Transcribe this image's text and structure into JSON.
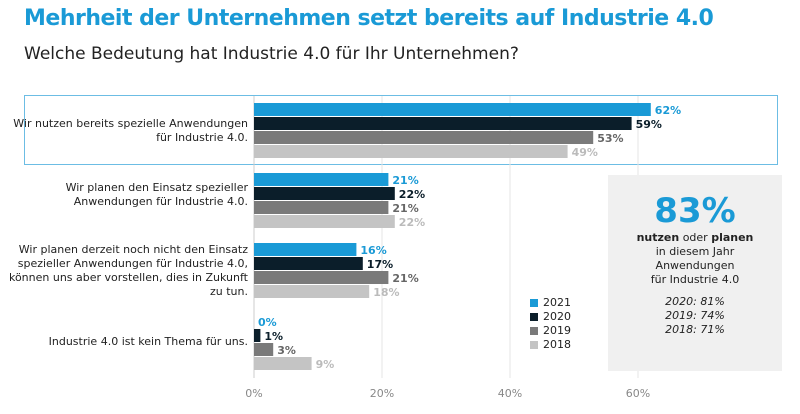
{
  "title": "Mehrheit der Unternehmen setzt bereits auf Industrie 4.0",
  "subtitle": "Welche Bedeutung hat Industrie 4.0 für Ihr Unternehmen?",
  "chart_data": {
    "type": "bar",
    "orientation": "horizontal",
    "categories": [
      "Wir nutzen bereits spezielle Anwendungen für Industrie 4.0.",
      "Wir planen den Einsatz spezieller Anwendungen für Industrie 4.0.",
      "Wir planen derzeit noch nicht den Einsatz spezieller Anwendungen für Industrie 4.0, können uns aber vorstellen, dies in Zukunft zu tun.",
      "Industrie 4.0 ist kein Thema für uns."
    ],
    "series": [
      {
        "name": "2021",
        "color": "#1a9ad6",
        "values": [
          62,
          21,
          16,
          0
        ]
      },
      {
        "name": "2020",
        "color": "#0b1e2a",
        "values": [
          59,
          22,
          17,
          1
        ]
      },
      {
        "name": "2019",
        "color": "#7a7a7a",
        "values": [
          53,
          21,
          21,
          3
        ]
      },
      {
        "name": "2018",
        "color": "#c4c4c4",
        "values": [
          49,
          22,
          18,
          9
        ]
      }
    ],
    "xticks": [
      "0%",
      "20%",
      "40%",
      "60%"
    ],
    "xlim": [
      0,
      70
    ],
    "grid": true,
    "legend": "bottom-right",
    "highlighted_category": 0
  },
  "info": {
    "big": "83%",
    "b1": "nutzen",
    "mid": " oder ",
    "b2": "planen",
    "l2": "in diesem Jahr",
    "l3": "Anwendungen",
    "l4": "für  Industrie 4.0",
    "h1": "2020: 81%",
    "h2": "2019: 74%",
    "h3": "2018: 71%"
  }
}
